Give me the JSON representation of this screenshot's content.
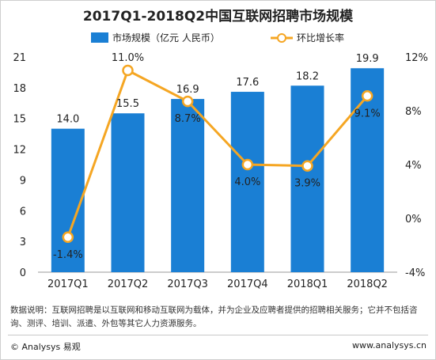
{
  "chart_data": {
    "type": "bar",
    "title": "2017Q1-2018Q2中国互联网招聘市场规模",
    "categories": [
      "2017Q1",
      "2017Q2",
      "2017Q3",
      "2017Q4",
      "2018Q1",
      "2018Q2"
    ],
    "series": [
      {
        "name": "市场规模（亿元 人民币）",
        "type": "bar",
        "axis": "left",
        "values": [
          14.0,
          15.5,
          16.9,
          17.6,
          18.2,
          19.9
        ],
        "labels": [
          "14.0",
          "15.5",
          "16.9",
          "17.6",
          "18.2",
          "19.9"
        ],
        "color": "#1a7fd4"
      },
      {
        "name": "环比增长率",
        "type": "line",
        "axis": "right",
        "values": [
          -1.4,
          11.0,
          8.7,
          4.0,
          3.9,
          9.1
        ],
        "labels": [
          "-1.4%",
          "11.0%",
          "8.7%",
          "4.0%",
          "3.9%",
          "9.1%"
        ],
        "color": "#f5a623"
      }
    ],
    "y_left": {
      "min": 0,
      "max": 21,
      "ticks": [
        "0",
        "3",
        "6",
        "9",
        "12",
        "15",
        "18",
        "21"
      ]
    },
    "y_right": {
      "min": -4,
      "max": 12,
      "ticks": [
        "-4%",
        "0%",
        "4%",
        "8%",
        "12%"
      ]
    },
    "legend_position": "top-center",
    "grid": false
  },
  "footnote": "数据说明：互联网招聘是以互联网和移动互联网为载体，并为企业及应聘者提供的招聘相关服务；它并不包括咨询、测评、培训、派遣、外包等其它人力资源服务。",
  "footer": {
    "copyright": "© Analysys 易观",
    "website": "www.analysys.cn"
  }
}
